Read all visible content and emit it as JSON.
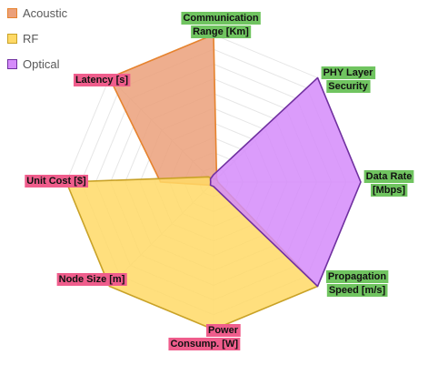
{
  "chart_data": {
    "type": "radar",
    "title": "",
    "axes": [
      "Communication\nRange [Km]",
      "PHY Layer\nSecurity",
      "Data Rate\n[Mbps]",
      "Propagation\nSpeed [m/s]",
      "Power\nConsump. [W]",
      "Node Size [m]",
      "Unit Cost [$]",
      "Latency [s]"
    ],
    "axis_label_colors": [
      "green",
      "green",
      "green",
      "green",
      "red",
      "red",
      "red",
      "red"
    ],
    "rmax": 10,
    "grid_rings": 10,
    "legend_position": "top-left",
    "series": [
      {
        "name": "Acoustic",
        "values": [
          10,
          0.3,
          0.3,
          0.3,
          0.3,
          0.3,
          3.6,
          10
        ]
      },
      {
        "name": "RF",
        "values": [
          0.2,
          0.3,
          0.3,
          10,
          10,
          10,
          10,
          0.5
        ]
      },
      {
        "name": "Optical",
        "values": [
          0.5,
          10,
          10,
          10,
          0.3,
          0.3,
          0.2,
          0.3
        ]
      }
    ]
  },
  "colors": {
    "Acoustic": {
      "fill": "#EBA07A",
      "stroke": "#E6832E"
    },
    "RF": {
      "fill": "#FFD966",
      "stroke": "#C9A227"
    },
    "Optical": {
      "fill": "#D58BFA",
      "stroke": "#7030A0"
    },
    "label_green": "#70C460",
    "label_red": "#EF5D8C",
    "grid": "#e6e6e6"
  }
}
